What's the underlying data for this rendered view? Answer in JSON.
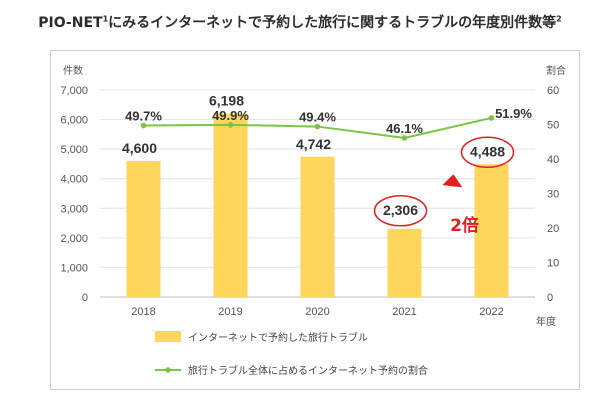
{
  "title": "PIO-NET",
  "title_sup": "1",
  "title_rest": "にみるインターネットで予約した旅行に関するトラブルの年度別件数等",
  "title_sup2": "2",
  "chart_data": {
    "type": "bar",
    "categories": [
      "2018",
      "2019",
      "2020",
      "2021",
      "2022"
    ],
    "series": [
      {
        "name": "インターネットで予約した旅行トラブル",
        "type": "bar",
        "axis": "left",
        "values": [
          4600,
          6198,
          4742,
          2306,
          4488
        ],
        "labels": [
          "4,600",
          "6,198",
          "4,742",
          "2,306",
          "4,488"
        ]
      },
      {
        "name": "旅行トラブル全体に占めるインターネット予約の割合",
        "type": "line",
        "axis": "right",
        "values": [
          49.7,
          49.9,
          49.4,
          46.1,
          51.9
        ],
        "labels": [
          "49.7%",
          "49.9%",
          "49.4%",
          "46.1%",
          "51.9%"
        ]
      }
    ],
    "ylim": [
      0,
      7000
    ],
    "y2lim": [
      0,
      60
    ],
    "yticks": [
      "0",
      "1,000",
      "2,000",
      "3,000",
      "4,000",
      "5,000",
      "6,000",
      "7,000"
    ],
    "y2ticks": [
      "0",
      "10",
      "20",
      "30",
      "40",
      "50",
      "60"
    ],
    "ylabel": "件数",
    "y2label": "割合",
    "xlabel": "年度",
    "annotation": "2倍",
    "highlighted_categories": [
      "2021",
      "2022"
    ],
    "legend_position": "bottom"
  },
  "colors": {
    "bar": "#FFD65C",
    "line": "#7CC444",
    "circle": "#E02020",
    "arrow": "#E02020"
  }
}
